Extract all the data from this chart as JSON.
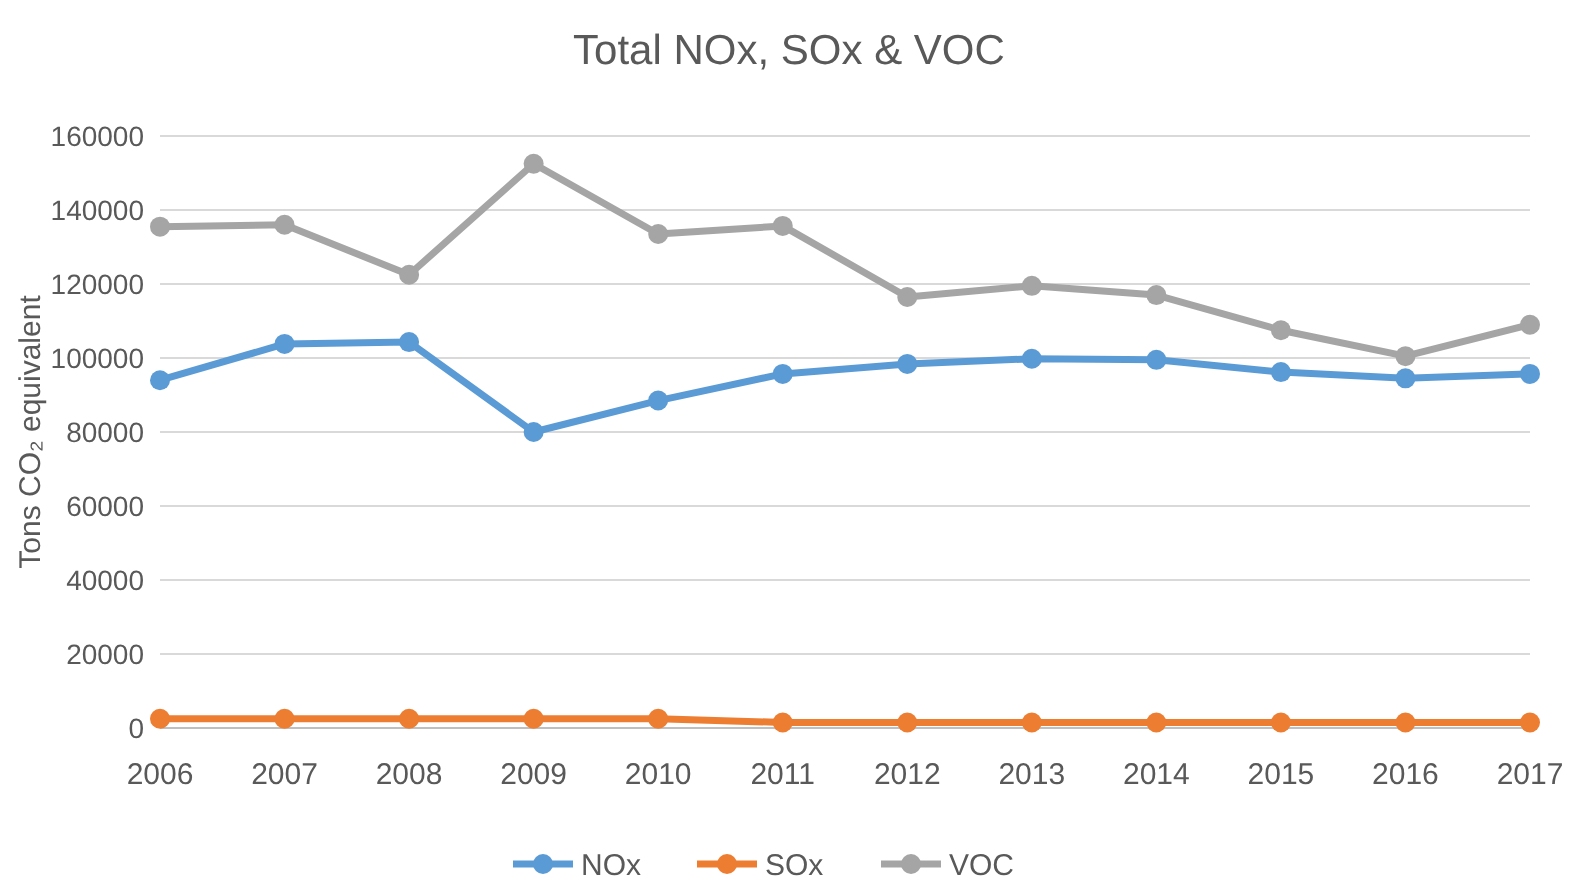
{
  "chart_data": {
    "type": "line",
    "title": "Total NOx, SOx & VOC",
    "ylabel": "Tons CO₂ equivalent",
    "categories": [
      "2006",
      "2007",
      "2008",
      "2009",
      "2010",
      "2011",
      "2012",
      "2013",
      "2014",
      "2015",
      "2016",
      "2017"
    ],
    "series": [
      {
        "name": "NOx",
        "color": "#5b9bd5",
        "values": [
          94000,
          103800,
          104300,
          80000,
          88500,
          95700,
          98400,
          99800,
          99500,
          96200,
          94500,
          95700
        ]
      },
      {
        "name": "SOx",
        "color": "#ed7d31",
        "values": [
          2500,
          2500,
          2500,
          2500,
          2500,
          1500,
          1500,
          1500,
          1500,
          1500,
          1500,
          1500
        ]
      },
      {
        "name": "VOC",
        "color": "#a5a5a5",
        "values": [
          135500,
          136000,
          122500,
          152500,
          133500,
          135700,
          116500,
          119500,
          117000,
          107500,
          100500,
          109000
        ]
      }
    ],
    "ylim": [
      0,
      160000
    ],
    "yticks": [
      0,
      20000,
      40000,
      60000,
      80000,
      100000,
      120000,
      140000,
      160000
    ],
    "grid": "y",
    "legend": "bottom",
    "marker": "circle",
    "line_style": "solid"
  }
}
